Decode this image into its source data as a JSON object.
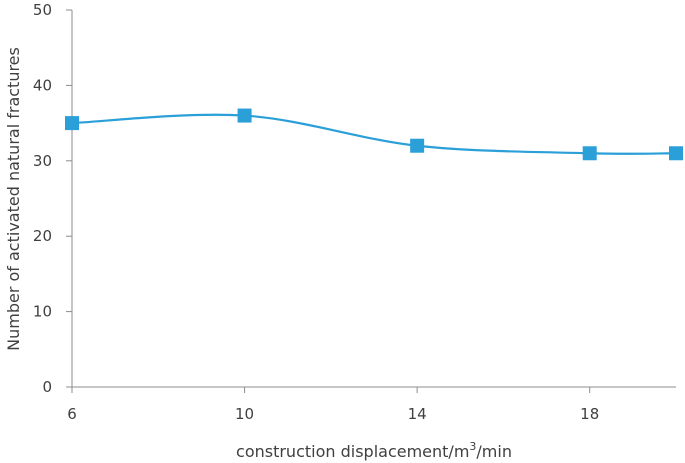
{
  "chart_data": {
    "type": "line",
    "x": [
      6,
      10,
      14,
      18,
      20
    ],
    "series": [
      {
        "values": [
          35,
          36,
          32,
          31,
          31
        ],
        "color": "#2a9fd8",
        "marker": "square",
        "smooth": true
      }
    ],
    "xlabel_text": "construction displacement/m",
    "xlabel_sup": "3",
    "xlabel_tail": "/min",
    "ylabel": "Number of activated natural fractures",
    "xlim": [
      6,
      20
    ],
    "ylim": [
      0,
      50
    ],
    "xticks": [
      6,
      10,
      14,
      18
    ],
    "yticks": [
      0,
      10,
      20,
      30,
      40,
      50
    ],
    "grid": false,
    "axis_color": "#8c8c8c"
  }
}
